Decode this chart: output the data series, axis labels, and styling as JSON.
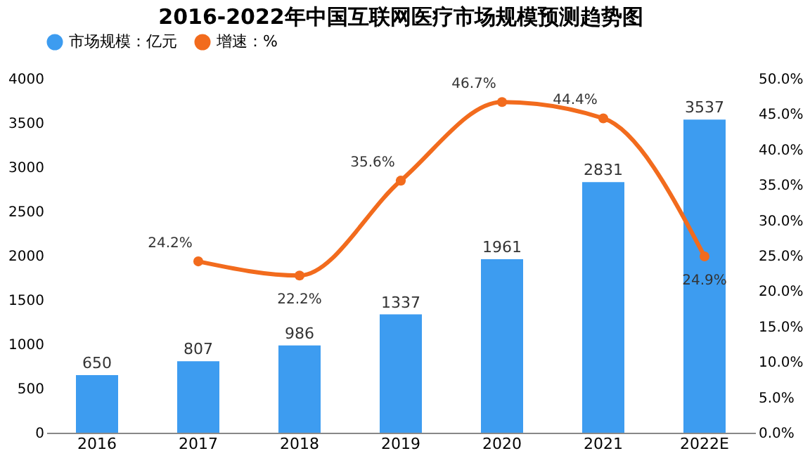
{
  "chart_data": {
    "type": "bar",
    "title": "2016-2022年中国互联网医疗市场规模预测趋势图",
    "categories": [
      "2016",
      "2017",
      "2018",
      "2019",
      "2020",
      "2021",
      "2022E"
    ],
    "series": [
      {
        "name": "市场规模：亿元",
        "color": "#3d9cf0",
        "values": [
          650,
          807,
          986,
          1337,
          1961,
          2831,
          3537
        ]
      },
      {
        "name": "增速：%",
        "type": "line",
        "axis": "y2",
        "color": "#f26b1d",
        "marker": "circle",
        "values": [
          null,
          24.2,
          22.2,
          35.6,
          46.7,
          44.4,
          24.9
        ],
        "value_labels": [
          null,
          "24.2%",
          "22.2%",
          "35.6%",
          "46.7%",
          "44.4%",
          "24.9%"
        ]
      }
    ],
    "data_labels": true,
    "ylim": [
      0,
      4000
    ],
    "yticks": [
      0,
      500,
      1000,
      1500,
      2000,
      2500,
      3000,
      3500,
      4000
    ],
    "y2lim": [
      0,
      50
    ],
    "y2ticks": [
      {
        "value": 0,
        "label": "0.0%"
      },
      {
        "value": 5,
        "label": "5.0%"
      },
      {
        "value": 10,
        "label": "10.0%"
      },
      {
        "value": 15,
        "label": "15.0%"
      },
      {
        "value": 20,
        "label": "20.0%"
      },
      {
        "value": 25,
        "label": "25.0%"
      },
      {
        "value": 30,
        "label": "30.0%"
      },
      {
        "value": 35,
        "label": "35.0%"
      },
      {
        "value": 40,
        "label": "40.0%"
      },
      {
        "value": 45,
        "label": "45.0%"
      },
      {
        "value": 50,
        "label": "50.0%"
      }
    ],
    "grid": false,
    "legend": "top"
  }
}
